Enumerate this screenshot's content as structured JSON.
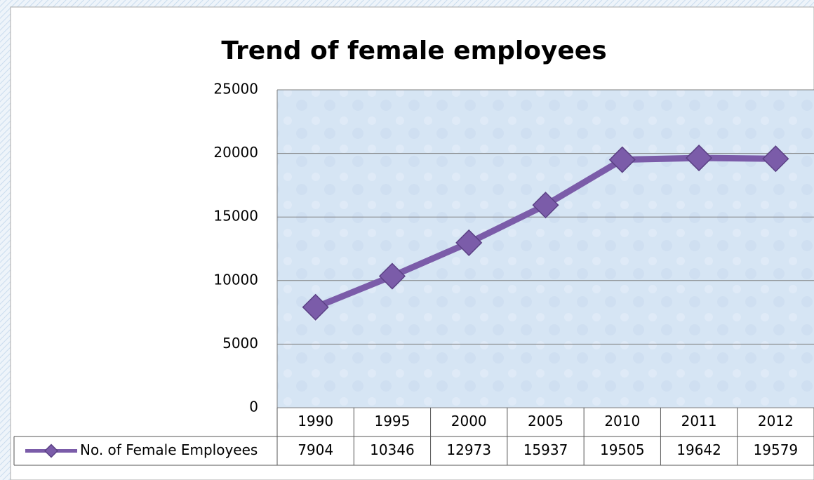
{
  "chart_data": {
    "type": "line",
    "title": "Trend of female employees",
    "categories": [
      "1990",
      "1995",
      "2000",
      "2005",
      "2010",
      "2011",
      "2012"
    ],
    "series": [
      {
        "name": "No. of Female Employees",
        "color": "#7b5ca9",
        "values": [
          7904,
          10346,
          12973,
          15937,
          19505,
          19642,
          19579
        ]
      }
    ],
    "ylim": [
      0,
      25000
    ],
    "yticks": [
      0,
      5000,
      10000,
      15000,
      20000,
      25000
    ],
    "grid": true,
    "legend": "bottom"
  }
}
